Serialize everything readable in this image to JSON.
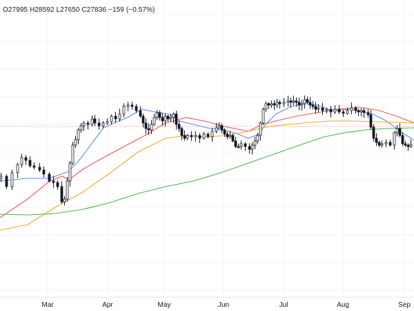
{
  "legend": {
    "open": "O27995",
    "high": "H28592",
    "low": "L27650",
    "close": "C27836",
    "change": "−159 (−0.57%)"
  },
  "colors": {
    "candle_up": "#ffffff",
    "candle_down": "#131722",
    "ma_blue": "#5b8def",
    "ma_red": "#ef5350",
    "ma_orange": "#f5a623",
    "ma_green": "#4caf50",
    "last_price_line": "#ef5350",
    "grid": "#f0f3fa"
  },
  "chart_data": {
    "type": "candlestick",
    "grid": true,
    "last_price_line": "dashed",
    "x_ticks": [
      "Mar",
      "Apr",
      "May",
      "Jun",
      "Jul",
      "Aug",
      "Sep"
    ],
    "last_candle": {
      "open": 27995,
      "high": 28592,
      "low": 27650,
      "close": 27836,
      "change": -159,
      "change_pct": -0.57
    },
    "series": [
      {
        "color": "blue",
        "points": [
          [
            0,
            262
          ],
          [
            40,
            258
          ],
          [
            72,
            258
          ],
          [
            100,
            248
          ],
          [
            118,
            228
          ],
          [
            135,
            205
          ],
          [
            150,
            185
          ],
          [
            165,
            178
          ],
          [
            185,
            170
          ],
          [
            205,
            158
          ],
          [
            225,
            162
          ],
          [
            245,
            165
          ],
          [
            260,
            175
          ],
          [
            280,
            180
          ],
          [
            300,
            185
          ],
          [
            320,
            188
          ],
          [
            340,
            192
          ],
          [
            360,
            200
          ],
          [
            375,
            194
          ],
          [
            385,
            180
          ],
          [
            400,
            165
          ],
          [
            420,
            155
          ],
          [
            440,
            150
          ],
          [
            460,
            152
          ],
          [
            480,
            160
          ],
          [
            510,
            158
          ],
          [
            540,
            165
          ],
          [
            560,
            175
          ],
          [
            580,
            190
          ],
          [
            600,
            203
          ]
        ]
      },
      {
        "color": "red",
        "points": [
          [
            0,
            315
          ],
          [
            40,
            288
          ],
          [
            72,
            262
          ],
          [
            90,
            255
          ],
          [
            100,
            260
          ],
          [
            120,
            245
          ],
          [
            150,
            228
          ],
          [
            180,
            212
          ],
          [
            210,
            196
          ],
          [
            240,
            178
          ],
          [
            270,
            170
          ],
          [
            300,
            176
          ],
          [
            330,
            184
          ],
          [
            360,
            190
          ],
          [
            380,
            180
          ],
          [
            400,
            175
          ],
          [
            430,
            168
          ],
          [
            460,
            163
          ],
          [
            490,
            158
          ],
          [
            520,
            155
          ],
          [
            550,
            160
          ],
          [
            580,
            170
          ],
          [
            600,
            178
          ]
        ]
      },
      {
        "color": "orange",
        "points": [
          [
            0,
            333
          ],
          [
            40,
            325
          ],
          [
            80,
            300
          ],
          [
            120,
            278
          ],
          [
            160,
            250
          ],
          [
            200,
            220
          ],
          [
            240,
            200
          ],
          [
            270,
            196
          ],
          [
            300,
            198
          ],
          [
            330,
            196
          ],
          [
            360,
            190
          ],
          [
            390,
            183
          ],
          [
            420,
            180
          ],
          [
            450,
            177
          ],
          [
            480,
            175
          ],
          [
            510,
            175
          ],
          [
            540,
            176
          ],
          [
            570,
            177
          ],
          [
            600,
            178
          ]
        ]
      },
      {
        "color": "green",
        "points": [
          [
            0,
            310
          ],
          [
            40,
            311
          ],
          [
            80,
            309
          ],
          [
            120,
            303
          ],
          [
            160,
            293
          ],
          [
            200,
            280
          ],
          [
            240,
            270
          ],
          [
            280,
            262
          ],
          [
            320,
            250
          ],
          [
            360,
            236
          ],
          [
            400,
            222
          ],
          [
            440,
            208
          ],
          [
            470,
            198
          ],
          [
            500,
            192
          ],
          [
            530,
            188
          ],
          [
            560,
            186
          ],
          [
            600,
            185
          ]
        ]
      }
    ]
  }
}
